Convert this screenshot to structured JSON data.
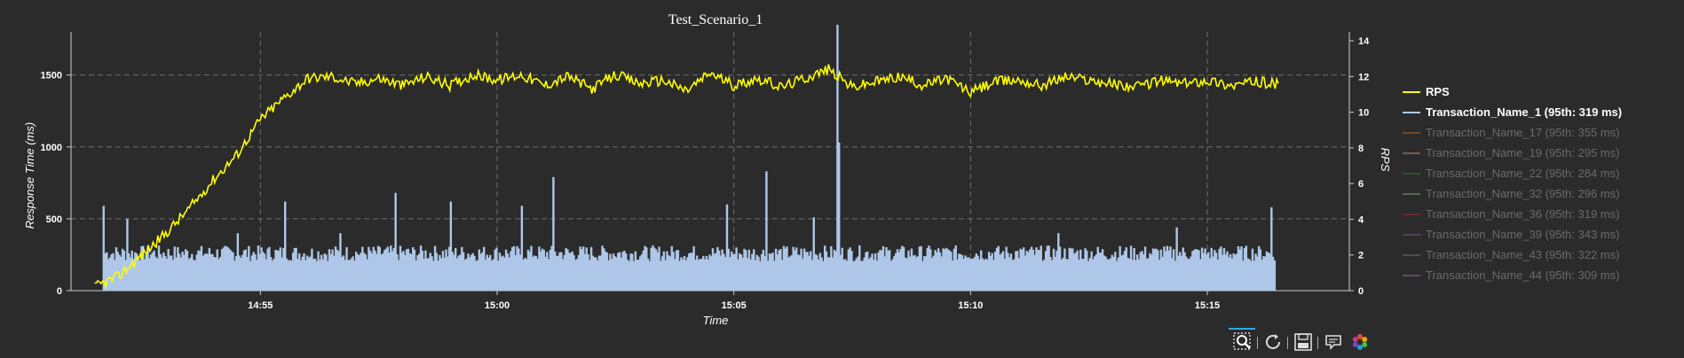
{
  "chart_data": {
    "type": "line+bar",
    "title": "Test_Scenario_1",
    "xlabel": "Time",
    "ylabel_left": "Response Time (ms)",
    "ylabel_right": "RPS",
    "x_range": [
      "14:51:00",
      "15:18:00"
    ],
    "x_ticks": [
      "14:55",
      "15:00",
      "15:05",
      "15:10",
      "15:15"
    ],
    "y_left_range": [
      0,
      1800
    ],
    "y_left_ticks": [
      0,
      500,
      1000,
      1500
    ],
    "y_right_range": [
      0,
      14.5
    ],
    "y_right_ticks": [
      0,
      2,
      4,
      6,
      8,
      10,
      12,
      14
    ],
    "grid": true,
    "legend_position": "right",
    "series": [
      {
        "name": "RPS",
        "type": "line",
        "axis": "right",
        "color": "#ffff00",
        "muted": false,
        "points": [
          [
            "14:51:30",
            0.2
          ],
          [
            "14:52:00",
            0.8
          ],
          [
            "14:52:30",
            2.0
          ],
          [
            "14:53:00",
            3.2
          ],
          [
            "14:53:30",
            4.6
          ],
          [
            "14:54:00",
            6.2
          ],
          [
            "14:54:30",
            7.6
          ],
          [
            "14:55:00",
            9.6
          ],
          [
            "14:55:30",
            10.8
          ],
          [
            "14:56:00",
            11.9
          ],
          [
            "14:56:30",
            12.0
          ],
          [
            "14:57:00",
            11.6
          ],
          [
            "14:57:30",
            11.9
          ],
          [
            "14:58:00",
            11.5
          ],
          [
            "14:58:30",
            12.0
          ],
          [
            "14:59:00",
            11.5
          ],
          [
            "14:59:30",
            12.1
          ],
          [
            "15:00:00",
            11.8
          ],
          [
            "15:00:30",
            12.1
          ],
          [
            "15:01:00",
            11.5
          ],
          [
            "15:01:30",
            12.0
          ],
          [
            "15:02:00",
            11.3
          ],
          [
            "15:02:30",
            12.1
          ],
          [
            "15:03:00",
            11.6
          ],
          [
            "15:03:30",
            11.8
          ],
          [
            "15:04:00",
            11.2
          ],
          [
            "15:04:30",
            12.2
          ],
          [
            "15:05:00",
            11.5
          ],
          [
            "15:05:30",
            11.9
          ],
          [
            "15:06:00",
            11.4
          ],
          [
            "15:06:30",
            11.9
          ],
          [
            "15:07:00",
            12.4
          ],
          [
            "15:07:30",
            11.4
          ],
          [
            "15:08:00",
            11.7
          ],
          [
            "15:08:30",
            12.0
          ],
          [
            "15:09:00",
            11.5
          ],
          [
            "15:09:30",
            11.9
          ],
          [
            "15:10:00",
            11.1
          ],
          [
            "15:10:30",
            11.7
          ],
          [
            "15:11:00",
            11.8
          ],
          [
            "15:11:30",
            11.5
          ],
          [
            "15:12:00",
            12.0
          ],
          [
            "15:12:30",
            11.8
          ],
          [
            "15:13:00",
            11.6
          ],
          [
            "15:13:30",
            11.4
          ],
          [
            "15:14:00",
            11.8
          ],
          [
            "15:14:30",
            11.6
          ],
          [
            "15:15:00",
            11.8
          ],
          [
            "15:15:30",
            11.5
          ],
          [
            "15:16:00",
            11.7
          ],
          [
            "15:16:30",
            11.6
          ]
        ]
      },
      {
        "name": "Transaction_Name_1 (95th: 319 ms)",
        "type": "bar",
        "axis": "left",
        "color": "#aec7e8",
        "muted": false,
        "baseline_ms": 260,
        "spikes": [
          [
            "14:51:40",
            590
          ],
          [
            "14:52:10",
            500
          ],
          [
            "14:54:30",
            400
          ],
          [
            "14:55:30",
            620
          ],
          [
            "14:56:40",
            400
          ],
          [
            "14:57:50",
            680
          ],
          [
            "14:59:00",
            620
          ],
          [
            "15:00:30",
            590
          ],
          [
            "15:01:10",
            790
          ],
          [
            "15:04:50",
            600
          ],
          [
            "15:05:40",
            830
          ],
          [
            "15:06:40",
            510
          ],
          [
            "15:07:10",
            1850
          ],
          [
            "15:07:12",
            1030
          ],
          [
            "15:11:50",
            400
          ],
          [
            "15:14:20",
            440
          ],
          [
            "15:16:20",
            580
          ]
        ]
      },
      {
        "name": "Transaction_Name_17 (95th: 355 ms)",
        "type": "line",
        "color": "#ff7f0e",
        "muted": true
      },
      {
        "name": "Transaction_Name_19 (95th: 295 ms)",
        "type": "line",
        "color": "#ffbb78",
        "muted": true
      },
      {
        "name": "Transaction_Name_22 (95th: 284 ms)",
        "type": "line",
        "color": "#2ca02c",
        "muted": true
      },
      {
        "name": "Transaction_Name_32 (95th: 296 ms)",
        "type": "line",
        "color": "#98df8a",
        "muted": true
      },
      {
        "name": "Transaction_Name_36 (95th: 319 ms)",
        "type": "line",
        "color": "#d62728",
        "muted": true
      },
      {
        "name": "Transaction_Name_39 (95th: 343 ms)",
        "type": "line",
        "color": "#9467bd",
        "muted": true
      },
      {
        "name": "Transaction_Name_43 (95th: 322 ms)",
        "type": "line",
        "color": "#8c8c8c",
        "muted": true
      },
      {
        "name": "Transaction_Name_44 (95th: 309 ms)",
        "type": "line",
        "color": "#e377c2",
        "muted": true
      }
    ]
  },
  "toolbar": {
    "tools": [
      "box-zoom-icon",
      "reset-icon",
      "save-icon",
      "hover-icon",
      "bokeh-logo-icon"
    ]
  }
}
